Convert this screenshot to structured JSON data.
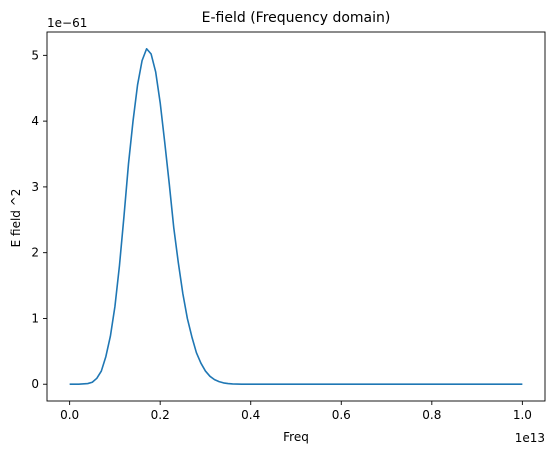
{
  "chart_data": {
    "type": "line",
    "title": "E-field (Frequency domain)",
    "xlabel": "Freq",
    "ylabel": "E field ^2",
    "x_offset_label": "1e13",
    "y_offset_label": "1e−61",
    "xlim": [
      -0.05,
      1.05
    ],
    "ylim": [
      -0.255,
      5.355
    ],
    "xticks": [
      0.0,
      0.2,
      0.4,
      0.6,
      0.8,
      1.0
    ],
    "xtick_labels": [
      "0.0",
      "0.2",
      "0.4",
      "0.6",
      "0.8",
      "1.0"
    ],
    "yticks": [
      0,
      1,
      2,
      3,
      4,
      5
    ],
    "ytick_labels": [
      "0",
      "1",
      "2",
      "3",
      "4",
      "5"
    ],
    "grid": false,
    "series": [
      {
        "color": "#1f77b4",
        "x": [
          0.0,
          0.02,
          0.04,
          0.05,
          0.06,
          0.07,
          0.08,
          0.09,
          0.1,
          0.11,
          0.12,
          0.13,
          0.14,
          0.15,
          0.16,
          0.17,
          0.18,
          0.19,
          0.2,
          0.21,
          0.22,
          0.23,
          0.24,
          0.25,
          0.26,
          0.27,
          0.28,
          0.29,
          0.3,
          0.31,
          0.32,
          0.33,
          0.34,
          0.35,
          0.36,
          0.38,
          0.4,
          0.45,
          0.5,
          0.6,
          0.7,
          0.8,
          0.9,
          1.0
        ],
        "y": [
          0.0,
          0.0,
          0.01,
          0.03,
          0.09,
          0.2,
          0.42,
          0.73,
          1.18,
          1.8,
          2.55,
          3.35,
          4.0,
          4.55,
          4.92,
          5.1,
          5.02,
          4.75,
          4.28,
          3.68,
          3.05,
          2.38,
          1.85,
          1.38,
          1.0,
          0.72,
          0.48,
          0.32,
          0.2,
          0.12,
          0.07,
          0.04,
          0.02,
          0.01,
          0.005,
          0.0,
          0.0,
          0.0,
          0.0,
          0.0,
          0.0,
          0.0,
          0.0,
          0.0
        ]
      }
    ]
  }
}
